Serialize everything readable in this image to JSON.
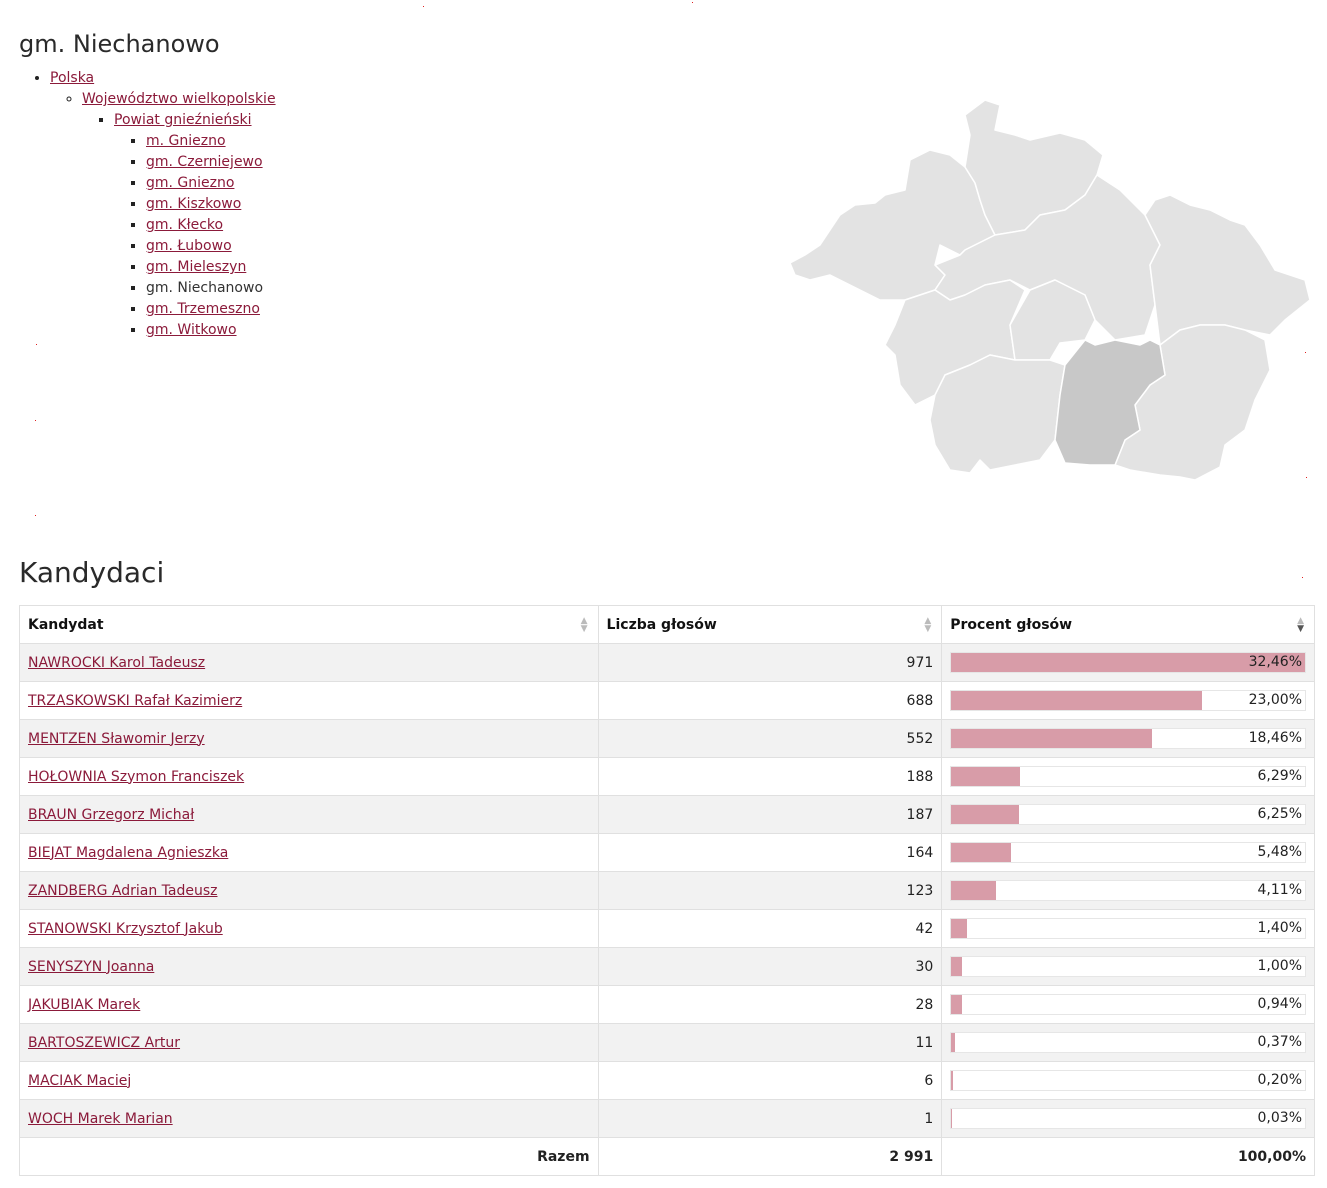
{
  "page_title": "gm. Niechanowo",
  "breadcrumbs": {
    "country": "Polska",
    "voivodeship": "Województwo wielkopolskie",
    "county": "Powiat gnieźnieński",
    "municipalities": [
      {
        "label": "m. Gniezno",
        "current": false
      },
      {
        "label": "gm. Czerniejewo",
        "current": false
      },
      {
        "label": "gm. Gniezno",
        "current": false
      },
      {
        "label": "gm. Kiszkowo",
        "current": false
      },
      {
        "label": "gm. Kłecko",
        "current": false
      },
      {
        "label": "gm. Łubowo",
        "current": false
      },
      {
        "label": "gm. Mieleszyn",
        "current": false
      },
      {
        "label": "gm. Niechanowo",
        "current": true
      },
      {
        "label": "gm. Trzemeszno",
        "current": false
      },
      {
        "label": "gm. Witkowo",
        "current": false
      }
    ]
  },
  "map": {
    "region_color": "#e3e3e3",
    "selected_color": "#c8c8c8",
    "selected_region": "gm. Niechanowo"
  },
  "section_title": "Kandydaci",
  "table": {
    "headers": {
      "candidate": "Kandydat",
      "votes": "Liczba głosów",
      "percent": "Procent głosów"
    },
    "sorted_by": "percent",
    "sort_direction": "desc",
    "bar_color": "#d89ca8",
    "rows": [
      {
        "name": "NAWROCKI Karol Tadeusz",
        "votes": "971",
        "percent": "32,46%",
        "share": 32.46
      },
      {
        "name": "TRZASKOWSKI Rafał Kazimierz",
        "votes": "688",
        "percent": "23,00%",
        "share": 23.0
      },
      {
        "name": "MENTZEN Sławomir Jerzy",
        "votes": "552",
        "percent": "18,46%",
        "share": 18.46
      },
      {
        "name": "HOŁOWNIA Szymon Franciszek",
        "votes": "188",
        "percent": "6,29%",
        "share": 6.29
      },
      {
        "name": "BRAUN Grzegorz Michał",
        "votes": "187",
        "percent": "6,25%",
        "share": 6.25
      },
      {
        "name": "BIEJAT Magdalena Agnieszka",
        "votes": "164",
        "percent": "5,48%",
        "share": 5.48
      },
      {
        "name": "ZANDBERG Adrian Tadeusz",
        "votes": "123",
        "percent": "4,11%",
        "share": 4.11
      },
      {
        "name": "STANOWSKI Krzysztof Jakub",
        "votes": "42",
        "percent": "1,40%",
        "share": 1.4
      },
      {
        "name": "SENYSZYN Joanna",
        "votes": "30",
        "percent": "1,00%",
        "share": 1.0
      },
      {
        "name": "JAKUBIAK Marek",
        "votes": "28",
        "percent": "0,94%",
        "share": 0.94
      },
      {
        "name": "BARTOSZEWICZ Artur",
        "votes": "11",
        "percent": "0,37%",
        "share": 0.37
      },
      {
        "name": "MACIAK Maciej",
        "votes": "6",
        "percent": "0,20%",
        "share": 0.2
      },
      {
        "name": "WOCH Marek Marian",
        "votes": "1",
        "percent": "0,03%",
        "share": 0.03
      }
    ],
    "footer": {
      "label": "Razem",
      "votes": "2 991",
      "percent": "100,00%"
    }
  }
}
